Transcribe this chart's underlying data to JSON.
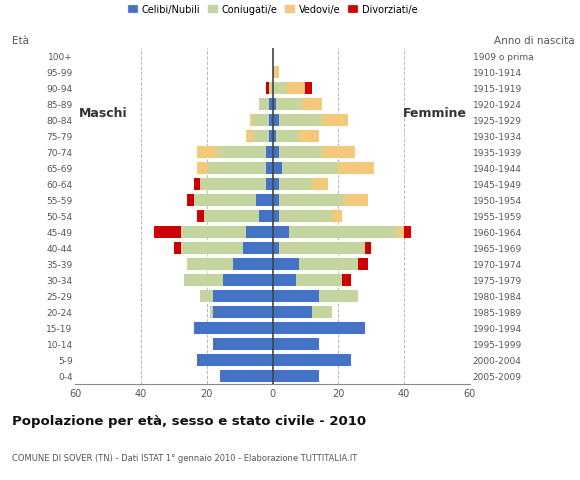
{
  "age_groups": [
    "0-4",
    "5-9",
    "10-14",
    "15-19",
    "20-24",
    "25-29",
    "30-34",
    "35-39",
    "40-44",
    "45-49",
    "50-54",
    "55-59",
    "60-64",
    "65-69",
    "70-74",
    "75-79",
    "80-84",
    "85-89",
    "90-94",
    "95-99",
    "100+"
  ],
  "birth_years": [
    "2005-2009",
    "2000-2004",
    "1995-1999",
    "1990-1994",
    "1985-1989",
    "1980-1984",
    "1975-1979",
    "1970-1974",
    "1965-1969",
    "1960-1964",
    "1955-1959",
    "1950-1954",
    "1945-1949",
    "1940-1944",
    "1935-1939",
    "1930-1934",
    "1925-1929",
    "1920-1924",
    "1915-1919",
    "1910-1914",
    "1909 o prima"
  ],
  "male": {
    "celibe": [
      16,
      23,
      18,
      24,
      18,
      18,
      15,
      12,
      9,
      8,
      4,
      5,
      2,
      2,
      2,
      1,
      1,
      1,
      0,
      0,
      0
    ],
    "coniugato": [
      0,
      0,
      0,
      0,
      1,
      4,
      12,
      14,
      19,
      20,
      17,
      19,
      20,
      18,
      15,
      5,
      5,
      3,
      1,
      0,
      0
    ],
    "vedovo": [
      0,
      0,
      0,
      0,
      0,
      0,
      0,
      0,
      0,
      0,
      0,
      0,
      0,
      3,
      6,
      2,
      1,
      0,
      0,
      0,
      0
    ],
    "divorziato": [
      0,
      0,
      0,
      0,
      0,
      0,
      0,
      0,
      2,
      8,
      2,
      2,
      2,
      0,
      0,
      0,
      0,
      0,
      1,
      0,
      0
    ]
  },
  "female": {
    "nubile": [
      14,
      24,
      14,
      28,
      12,
      14,
      7,
      8,
      2,
      5,
      2,
      2,
      2,
      3,
      2,
      1,
      2,
      1,
      0,
      0,
      0
    ],
    "coniugata": [
      0,
      0,
      0,
      0,
      6,
      12,
      14,
      18,
      26,
      33,
      16,
      20,
      10,
      17,
      13,
      7,
      13,
      8,
      4,
      0,
      0
    ],
    "vedova": [
      0,
      0,
      0,
      0,
      0,
      0,
      0,
      0,
      0,
      2,
      3,
      7,
      5,
      11,
      10,
      6,
      8,
      6,
      6,
      2,
      0
    ],
    "divorziata": [
      0,
      0,
      0,
      0,
      0,
      0,
      3,
      3,
      2,
      2,
      0,
      0,
      0,
      0,
      0,
      0,
      0,
      0,
      2,
      0,
      0
    ]
  },
  "colors": {
    "celibe": "#4472C4",
    "coniugato": "#C5D5A0",
    "vedovo": "#F5C97A",
    "divorziato": "#CC0000"
  },
  "legend_labels": [
    "Celibi/Nubili",
    "Coniugati/e",
    "Vedovi/e",
    "Divorziati/e"
  ],
  "title": "Popolazione per età, sesso e stato civile - 2010",
  "subtitle": "COMUNE DI SOVER (TN) - Dati ISTAT 1° gennaio 2010 - Elaborazione TUTTITALIA.IT",
  "label_maschi": "Maschi",
  "label_femmine": "Femmine",
  "label_eta": "Età",
  "label_anno": "Anno di nascita",
  "xlim": 60,
  "bg_color": "#FFFFFF",
  "grid_color": "#BBBBBB",
  "axis_color": "#888888"
}
